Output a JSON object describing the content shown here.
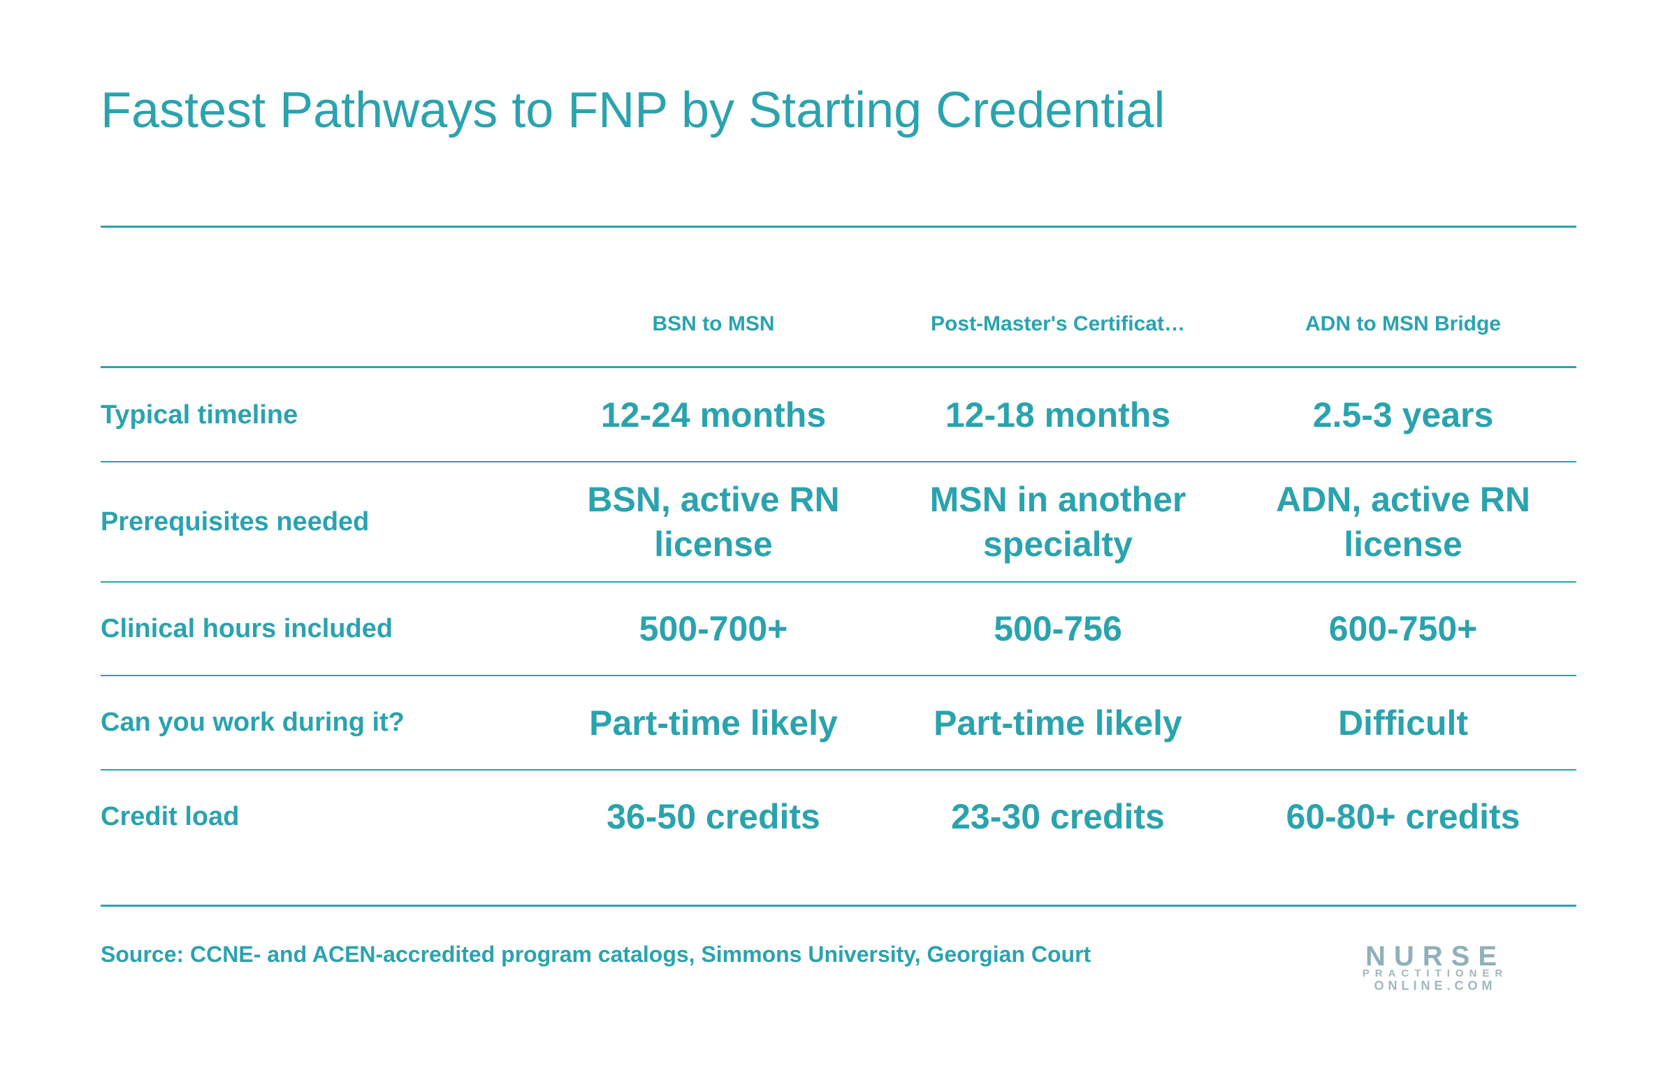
{
  "title": "Fastest Pathways to FNP by Starting Credential",
  "table": {
    "columns": [
      "BSN to MSN",
      "Post-Master's Certificat…",
      "ADN to MSN Bridge"
    ],
    "rows": [
      {
        "label": "Typical timeline",
        "cells": [
          "12-24 months",
          "12-18 months",
          "2.5-3 years"
        ]
      },
      {
        "label": "Prerequisites needed",
        "cells": [
          "BSN, active RN license",
          "MSN in another specialty",
          "ADN, active RN license"
        ]
      },
      {
        "label": "Clinical hours included",
        "cells": [
          "500-700+",
          "500-756",
          "600-750+"
        ]
      },
      {
        "label": "Can you work during it?",
        "cells": [
          "Part-time likely",
          "Part-time likely",
          "Difficult"
        ]
      },
      {
        "label": "Credit load",
        "cells": [
          "36-50 credits",
          "23-30 credits",
          "60-80+ credits"
        ]
      }
    ]
  },
  "source": "Source: CCNE- and ACEN-accredited program catalogs, Simmons University, Georgian Court",
  "logo": {
    "line1": "NURSE",
    "line2": "PRACTITIONER",
    "line3": "ONLINE.COM"
  }
}
